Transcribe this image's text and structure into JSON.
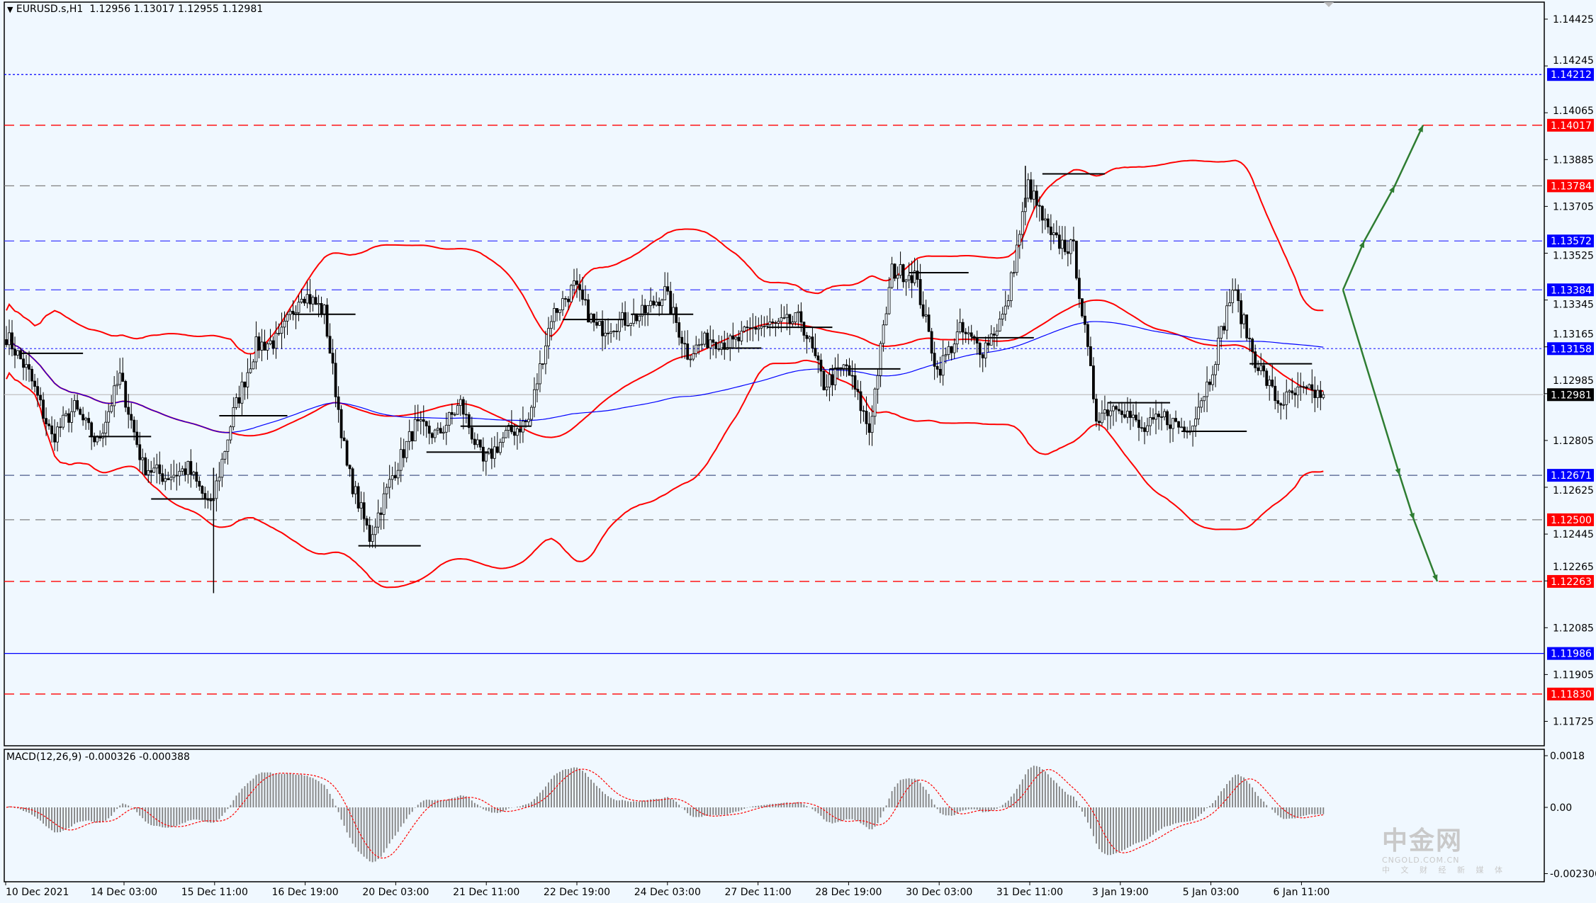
{
  "header": {
    "symbol": "EURUSD.s,H1",
    "ohlc": "1.12956 1.13017 1.12955 1.12981",
    "menu_icon": "triangle-down-icon"
  },
  "macd_label": "MACD(12,26,9) -0.000326 -0.000388",
  "watermark": {
    "logo_text": "中金网",
    "site": "CNGOLD.COM.CN",
    "tagline": "中 文 财 经 新 媒 体"
  },
  "chart_data": {
    "type": "candlestick",
    "symbol": "EURUSD.s",
    "timeframe": "H1",
    "ylim": [
      1.1165,
      1.1448
    ],
    "y_ticks": [
      "1.14425",
      "1.14245",
      "1.14065",
      "1.13885",
      "1.13705",
      "1.13525",
      "1.13345",
      "1.13165",
      "1.12985",
      "1.12805",
      "1.12625",
      "1.12445",
      "1.12265",
      "1.12085",
      "1.11905",
      "1.11725"
    ],
    "hidden_ticks": [
      "1.14245",
      "1.13165",
      "1.12985",
      "1.12625",
      "1.12445",
      "1.12265"
    ],
    "x_ticks": [
      "10 Dec 2021",
      "14 Dec 03:00",
      "15 Dec 11:00",
      "16 Dec 19:00",
      "20 Dec 03:00",
      "21 Dec 11:00",
      "22 Dec 19:00",
      "24 Dec 03:00",
      "27 Dec 11:00",
      "28 Dec 19:00",
      "30 Dec 03:00",
      "31 Dec 11:00",
      "3 Jan 19:00",
      "5 Jan 03:00",
      "6 Jan 11:00"
    ],
    "bars_between_ticks": 32,
    "close_path_every_8_bars": [
      1.13208,
      1.13061,
      1.12816,
      1.12929,
      1.12794,
      1.13048,
      1.1271,
      1.12665,
      1.12696,
      1.12543,
      1.12911,
      1.13169,
      1.1319,
      1.13378,
      1.13299,
      1.127,
      1.12433,
      1.1267,
      1.12859,
      1.12825,
      1.12946,
      1.12716,
      1.12825,
      1.12882,
      1.13283,
      1.13396,
      1.13232,
      1.13262,
      1.1329,
      1.13375,
      1.1314,
      1.13198,
      1.13175,
      1.13243,
      1.13247,
      1.1327,
      1.1302,
      1.1309,
      1.12843,
      1.13457,
      1.13443,
      1.1307,
      1.13227,
      1.13154,
      1.133,
      1.13786,
      1.1358,
      1.1354,
      1.129,
      1.1295,
      1.1284,
      1.12895,
      1.1284,
      1.13046,
      1.1339,
      1.13117,
      1.1295,
      1.1299,
      1.12981
    ],
    "extremes": {
      "high": 1.13861,
      "low": 1.12218
    },
    "last_price": "1.12981",
    "levels": [
      {
        "price": "1.14212",
        "color": "#0000FF",
        "style": "dotted",
        "label_bg": "#0000FF"
      },
      {
        "price": "1.14017",
        "color": "#FF0000",
        "style": "dashed",
        "label_bg": "#FF0000"
      },
      {
        "price": "1.13784",
        "color": "#808080",
        "style": "dashed",
        "label_bg": "#FF0000"
      },
      {
        "price": "1.13572",
        "color": "#3A3AFF",
        "style": "dashed",
        "label_bg": "#0000FF"
      },
      {
        "price": "1.13384",
        "color": "#3A3AFF",
        "style": "dashed",
        "label_bg": "#0000FF"
      },
      {
        "price": "1.13158",
        "color": "#3A3AFF",
        "style": "dotted",
        "label_bg": "#0000FF"
      },
      {
        "price": "1.12981",
        "color": "#C0C0C0",
        "style": "solid",
        "label_bg": "#000000"
      },
      {
        "price": "1.12671",
        "color": "#4A5A8A",
        "style": "dashed",
        "label_bg": "#0000FF"
      },
      {
        "price": "1.12500",
        "color": "#808080",
        "style": "dashed",
        "label_bg": "#FF0000"
      },
      {
        "price": "1.12263",
        "color": "#FF0000",
        "style": "dashed",
        "label_bg": "#FF0000"
      },
      {
        "price": "1.11986",
        "color": "#0000FF",
        "style": "solid",
        "label_bg": "#0000FF"
      },
      {
        "price": "1.11830",
        "color": "#FF0000",
        "style": "dashed",
        "label_bg": "#FF0000"
      }
    ],
    "pivot_segments": [
      {
        "from_bar": 5,
        "to_bar": 27,
        "price": 1.1314
      },
      {
        "from_bar": 29,
        "to_bar": 51,
        "price": 1.1282
      },
      {
        "from_bar": 51,
        "to_bar": 73,
        "price": 1.1258
      },
      {
        "from_bar": 75,
        "to_bar": 99,
        "price": 1.129
      },
      {
        "from_bar": 101,
        "to_bar": 123,
        "price": 1.1329
      },
      {
        "from_bar": 124,
        "to_bar": 146,
        "price": 1.124
      },
      {
        "from_bar": 148,
        "to_bar": 170,
        "price": 1.1276
      },
      {
        "from_bar": 160,
        "to_bar": 185,
        "price": 1.1286
      },
      {
        "from_bar": 196,
        "to_bar": 218,
        "price": 1.1327
      },
      {
        "from_bar": 220,
        "to_bar": 242,
        "price": 1.1329
      },
      {
        "from_bar": 252,
        "to_bar": 266,
        "price": 1.1316
      },
      {
        "from_bar": 268,
        "to_bar": 291,
        "price": 1.1324
      },
      {
        "from_bar": 290,
        "to_bar": 315,
        "price": 1.1308
      },
      {
        "from_bar": 318,
        "to_bar": 339,
        "price": 1.1345
      },
      {
        "from_bar": 340,
        "to_bar": 362,
        "price": 1.132
      },
      {
        "from_bar": 365,
        "to_bar": 387,
        "price": 1.1383
      },
      {
        "from_bar": 388,
        "to_bar": 410,
        "price": 1.1295
      },
      {
        "from_bar": 414,
        "to_bar": 437,
        "price": 1.1284
      },
      {
        "from_bar": 438,
        "to_bar": 460,
        "price": 1.131
      }
    ],
    "indicators": {
      "bollinger_colors": "#FF0000",
      "moving_average_color": "#0000FF",
      "macd": {
        "params": "12,26,9",
        "value": -0.000326,
        "signal": -0.000388,
        "ylim": [
          -0.002306,
          0.0018
        ],
        "y_ticks": [
          "0.0018",
          "0.00",
          "-0.002306"
        ],
        "histogram_color": "#808080",
        "signal_color": "#FF0000"
      }
    },
    "projection_arrows": {
      "color": "#2E7D32",
      "up_path": [
        1.13384,
        1.13572,
        1.13784,
        1.14017
      ],
      "down_path": [
        1.13384,
        1.12671,
        1.125,
        1.12263
      ]
    }
  }
}
